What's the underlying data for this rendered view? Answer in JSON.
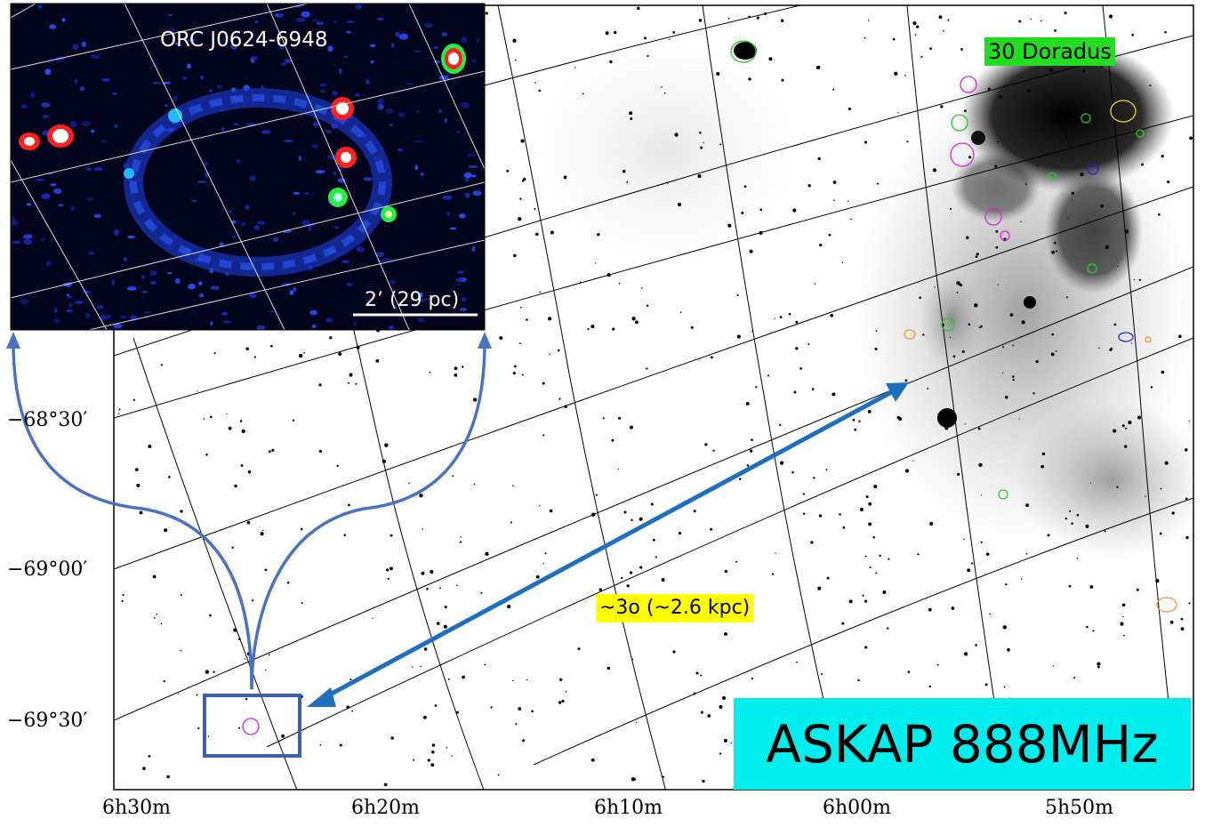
{
  "labels": {
    "region_30dor": "30 Doradus",
    "distance": "~3o (~2.6 kpc)",
    "instrument": "ASKAP 888MHz",
    "inset_title": "ORC J0624-6948",
    "inset_scale": "2’ (29 pc)"
  },
  "axes": {
    "ra_ticks": [
      "6h30m",
      "6h20m",
      "6h10m",
      "6h00m",
      "5h50m"
    ],
    "dec_ticks": [
      "−68°30′",
      "−69°00′",
      "−69°30′"
    ]
  },
  "colors": {
    "background": "#ffffff",
    "label_30dor_bg": "#22dd22",
    "label_distance_bg": "#ffff00",
    "label_askap_bg": "#00eeee",
    "arrow": "#1f6fbf",
    "zoom_lines": "#4a72c4",
    "inset_bg": "#03051c",
    "source_ring_magenta": "#dd22dd"
  }
}
